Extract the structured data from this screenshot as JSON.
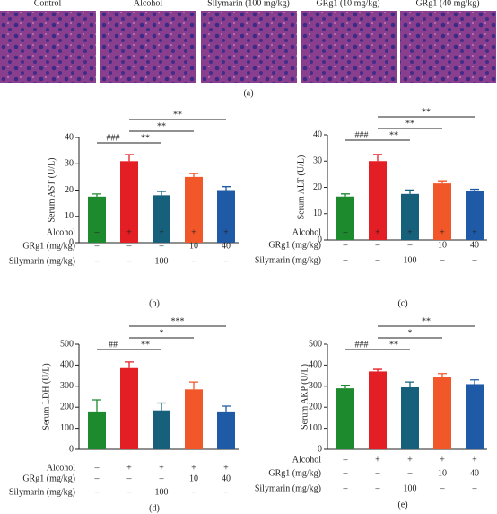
{
  "micrographs": {
    "labels": [
      "Control",
      "Alcohol",
      "Silymarin (100 mg/kg)",
      "GRg1 (10 mg/kg)",
      "GRg1 (40 mg/kg)"
    ],
    "caption": "(a)"
  },
  "chart_data": [
    {
      "type": "bar",
      "caption": "(b)",
      "y_label": "Serum AST (U/L)",
      "ylim": [
        0,
        40
      ],
      "yticks": [
        0,
        10,
        20,
        30,
        40
      ],
      "values": [
        17.5,
        31,
        18,
        25,
        20
      ],
      "errors": [
        1,
        2.5,
        1.5,
        1.3,
        1.3
      ],
      "colors": [
        "#1e8a2e",
        "#e31e24",
        "#17607c",
        "#f2572a",
        "#1f5aa6"
      ],
      "annotations": [
        "###",
        "**",
        "**",
        "**"
      ],
      "treatments": [
        {
          "label": "Alcohol",
          "values": [
            "–",
            "+",
            "+",
            "+",
            "+"
          ]
        },
        {
          "label": "GRg1 (mg/kg)",
          "values": [
            "–",
            "–",
            "–",
            "10",
            "40"
          ]
        },
        {
          "label": "Silymarin (mg/kg)",
          "values": [
            "–",
            "–",
            "100",
            "–",
            "–"
          ]
        }
      ]
    },
    {
      "type": "bar",
      "caption": "(c)",
      "y_label": "Serum ALT (U/L)",
      "ylim": [
        0,
        40
      ],
      "yticks": [
        0,
        10,
        20,
        30,
        40
      ],
      "values": [
        16.5,
        30,
        17.5,
        21.5,
        18.5
      ],
      "errors": [
        1,
        2.5,
        1.5,
        1,
        0.8
      ],
      "colors": [
        "#1e8a2e",
        "#e31e24",
        "#17607c",
        "#f2572a",
        "#1f5aa6"
      ],
      "annotations": [
        "###",
        "**",
        "**",
        "**"
      ],
      "treatments": [
        {
          "label": "Alcohol",
          "values": [
            "–",
            "+",
            "+",
            "+",
            "+"
          ]
        },
        {
          "label": "GRg1 (mg/kg)",
          "values": [
            "–",
            "–",
            "–",
            "10",
            "40"
          ]
        },
        {
          "label": "Silymarin (mg/kg)",
          "values": [
            "–",
            "–",
            "100",
            "–",
            "–"
          ]
        }
      ]
    },
    {
      "type": "bar",
      "caption": "(d)",
      "y_label": "Serum LDH (U/L)",
      "ylim": [
        0,
        500
      ],
      "yticks": [
        0,
        100,
        200,
        300,
        400,
        500
      ],
      "values": [
        180,
        390,
        185,
        285,
        180
      ],
      "errors": [
        55,
        25,
        35,
        35,
        25
      ],
      "colors": [
        "#1e8a2e",
        "#e31e24",
        "#17607c",
        "#f2572a",
        "#1f5aa6"
      ],
      "annotations": [
        "##",
        "**",
        "*",
        "***"
      ],
      "treatments": [
        {
          "label": "Alcohol",
          "values": [
            "–",
            "+",
            "+",
            "+",
            "+"
          ]
        },
        {
          "label": "GRg1 (mg/kg)",
          "values": [
            "–",
            "–",
            "–",
            "10",
            "40"
          ]
        },
        {
          "label": "Silymarin (mg/kg)",
          "values": [
            "–",
            "–",
            "100",
            "–",
            "–"
          ]
        }
      ]
    },
    {
      "type": "bar",
      "caption": "(e)",
      "y_label": "Serum AKP (U/L)",
      "ylim": [
        0,
        500
      ],
      "yticks": [
        0,
        100,
        200,
        300,
        400,
        500
      ],
      "values": [
        290,
        370,
        295,
        345,
        310
      ],
      "errors": [
        15,
        10,
        25,
        15,
        20
      ],
      "colors": [
        "#1e8a2e",
        "#e31e24",
        "#17607c",
        "#f2572a",
        "#1f5aa6"
      ],
      "annotations": [
        "###",
        "**",
        "*",
        "**"
      ],
      "treatments": [
        {
          "label": "Alcohol",
          "values": [
            "–",
            "+",
            "+",
            "+",
            "+"
          ]
        },
        {
          "label": "GRg1 (mg/kg)",
          "values": [
            "–",
            "–",
            "–",
            "10",
            "40"
          ]
        },
        {
          "label": "Silymarin (mg/kg)",
          "values": [
            "–",
            "–",
            "100",
            "–",
            "–"
          ]
        }
      ]
    }
  ]
}
